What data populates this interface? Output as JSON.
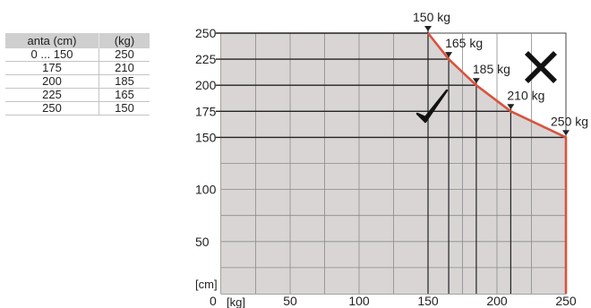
{
  "table": {
    "headers": [
      "anta (cm)",
      "(kg)"
    ],
    "rows": [
      [
        "0 ... 150",
        "250"
      ],
      [
        "175",
        "210"
      ],
      [
        "200",
        "185"
      ],
      [
        "225",
        "165"
      ],
      [
        "250",
        "150"
      ]
    ]
  },
  "chart_data": {
    "type": "area",
    "title": "",
    "xlabel": "[kg]",
    "ylabel": "[cm]",
    "xlim": [
      0,
      250
    ],
    "ylim": [
      0,
      250
    ],
    "x_ticks": [
      0,
      50,
      100,
      150,
      200,
      250
    ],
    "y_ticks": [
      50,
      100,
      150,
      175,
      200,
      225,
      250
    ],
    "grid": true,
    "series": [
      {
        "points": [
          {
            "x": 150,
            "y": 250
          },
          {
            "x": 165,
            "y": 225
          },
          {
            "x": 185,
            "y": 200
          },
          {
            "x": 210,
            "y": 175
          },
          {
            "x": 250,
            "y": 150
          },
          {
            "x": 250,
            "y": 0
          }
        ]
      }
    ],
    "annotations": [
      {
        "text": "150 kg",
        "x": 150,
        "y": 250
      },
      {
        "text": "165 kg",
        "x": 165,
        "y": 225
      },
      {
        "text": "185 kg",
        "x": 185,
        "y": 200
      },
      {
        "text": "210 kg",
        "x": 210,
        "y": 175
      },
      {
        "text": "250 kg",
        "x": 250,
        "y": 150
      }
    ],
    "colors": {
      "allowed_fill": "#d9d5d5",
      "limit_line": "#d9533d",
      "grid": "#444444"
    },
    "icons": {
      "allowed": "check-icon",
      "not_allowed": "cross-icon"
    }
  }
}
